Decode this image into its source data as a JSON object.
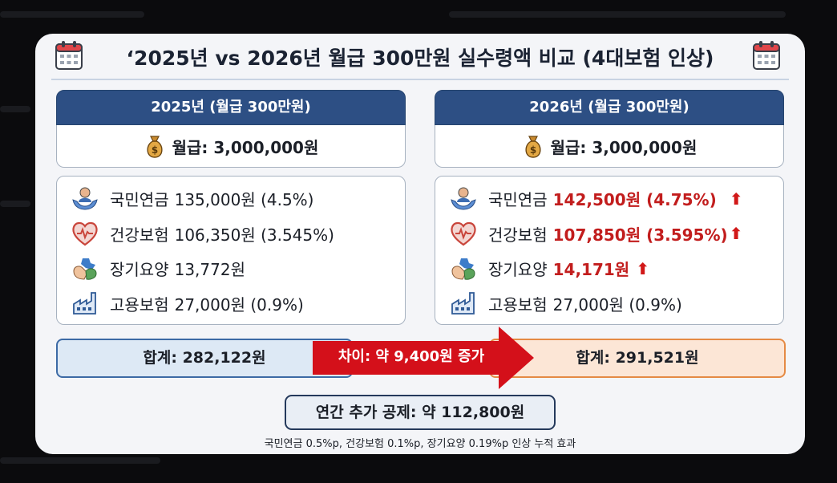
{
  "title": "‘2025년 vs 2026년 월급 300만원 실수령액 비교 (4대보험 인상)",
  "left": {
    "header": "2025년 (월급 300만원)",
    "salary": "월급: 3,000,000원",
    "items": [
      {
        "label": "국민연금",
        "value": "135,000원 (4.5%)",
        "icon": "pension-hands-icon"
      },
      {
        "label": "건강보험",
        "value": "106,350원 (3.545%)",
        "icon": "heart-pulse-icon"
      },
      {
        "label": "장기요양",
        "value": "13,772원",
        "icon": "care-hands-icon"
      },
      {
        "label": "고용보험",
        "value": "27,000원 (0.9%)",
        "icon": "factory-icon"
      }
    ],
    "total": "합계: 282,122원"
  },
  "right": {
    "header": "2026년 (월급 300만원)",
    "salary": "월급: 3,000,000원",
    "items": [
      {
        "label": "국민연금",
        "value_red": "142,500원 (4.75%)",
        "arrow": "⬆",
        "icon": "pension-hands-icon"
      },
      {
        "label": "건강보험",
        "value_red": "107,850원 (3.595%)",
        "arrow": "⬆",
        "icon": "heart-pulse-icon"
      },
      {
        "label": "장기요양",
        "value_red": "14,171원",
        "arrow": "⬆",
        "icon": "care-hands-icon"
      },
      {
        "label": "고용보험",
        "value": "27,000원 (0.9%)",
        "icon": "factory-icon"
      }
    ],
    "total": "합계: 291,521원"
  },
  "difference": "차이: 약 9,400원 증가",
  "annual": "연간 추가 공제: 약 112,800원",
  "note": "국민연금 0.5%p, 건강보험 0.1%p, 장기요양 0.19%p 인상 누적 효과",
  "colors": {
    "header_bg": "#2d4f84",
    "increase_red": "#c21d1d",
    "arrow_red": "#d4101a",
    "left_total_bg": "#dde9f5",
    "right_total_bg": "#fce6d6"
  }
}
